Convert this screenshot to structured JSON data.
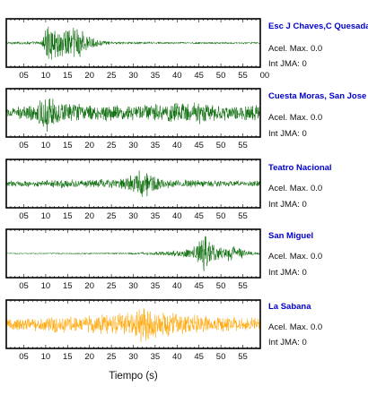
{
  "chart_data": {
    "type": "line",
    "xlabel": "Tiempo (s)",
    "xlim": [
      1,
      59
    ],
    "grid": false,
    "panels": [
      {
        "station": "Esc J Chaves,C Quesada",
        "acel_label": "Acel. Max.",
        "acel_value": "0.0",
        "jma_label": "Int JMA:",
        "jma_value": "0",
        "color": "#006600",
        "tick_labels": [
          "05",
          "10",
          "15",
          "20",
          "25",
          "30",
          "35",
          "40",
          "45",
          "50",
          "55",
          "00"
        ],
        "envelope": [
          [
            1,
            0.07
          ],
          [
            9,
            0.08
          ],
          [
            10,
            0.75
          ],
          [
            11,
            0.85
          ],
          [
            12,
            0.7
          ],
          [
            14,
            0.85
          ],
          [
            16,
            0.8
          ],
          [
            17,
            0.95
          ],
          [
            18,
            0.8
          ],
          [
            19,
            0.5
          ],
          [
            20,
            0.3
          ],
          [
            22,
            0.14
          ],
          [
            25,
            0.07
          ],
          [
            40,
            0.05
          ],
          [
            59,
            0.05
          ]
        ]
      },
      {
        "station": "Cuesta Moras, San Jose",
        "acel_label": "Acel. Max.",
        "acel_value": "0.0",
        "jma_label": "Int JMA:",
        "jma_value": "0",
        "color": "#006600",
        "tick_labels": [
          "05",
          "10",
          "15",
          "20",
          "25",
          "30",
          "35",
          "40",
          "45",
          "50",
          "55"
        ],
        "envelope": [
          [
            1,
            0.25
          ],
          [
            5,
            0.3
          ],
          [
            8,
            0.4
          ],
          [
            10,
            0.95
          ],
          [
            11,
            0.9
          ],
          [
            12,
            0.55
          ],
          [
            15,
            0.45
          ],
          [
            20,
            0.4
          ],
          [
            30,
            0.35
          ],
          [
            35,
            0.4
          ],
          [
            45,
            0.55
          ],
          [
            47,
            0.35
          ],
          [
            52,
            0.35
          ],
          [
            59,
            0.35
          ]
        ]
      },
      {
        "station": "Teatro Nacional",
        "acel_label": "Acel. Max.",
        "acel_value": "0.0",
        "jma_label": "Int JMA:",
        "jma_value": "0",
        "color": "#006600",
        "tick_labels": [
          "05",
          "10",
          "15",
          "20",
          "25",
          "30",
          "35",
          "40",
          "45",
          "50",
          "55"
        ],
        "envelope": [
          [
            1,
            0.14
          ],
          [
            10,
            0.15
          ],
          [
            13,
            0.22
          ],
          [
            20,
            0.18
          ],
          [
            27,
            0.22
          ],
          [
            30,
            0.45
          ],
          [
            32,
            0.85
          ],
          [
            34,
            0.55
          ],
          [
            36,
            0.3
          ],
          [
            40,
            0.18
          ],
          [
            45,
            0.16
          ],
          [
            59,
            0.14
          ]
        ]
      },
      {
        "station": "San Miguel",
        "acel_label": "Acel. Max.",
        "acel_value": "0.0",
        "jma_label": "Int JMA:",
        "jma_value": "0",
        "color": "#006600",
        "tick_labels": [
          "05",
          "10",
          "15",
          "20",
          "25",
          "30",
          "35",
          "40",
          "45",
          "50",
          "55"
        ],
        "envelope": [
          [
            1,
            0.03
          ],
          [
            20,
            0.04
          ],
          [
            30,
            0.05
          ],
          [
            35,
            0.08
          ],
          [
            40,
            0.15
          ],
          [
            43,
            0.25
          ],
          [
            45,
            0.55
          ],
          [
            46,
            0.95
          ],
          [
            47,
            0.7
          ],
          [
            49,
            0.3
          ],
          [
            51,
            0.3
          ],
          [
            52,
            0.45
          ],
          [
            54,
            0.3
          ],
          [
            56,
            0.12
          ],
          [
            59,
            0.07
          ]
        ]
      },
      {
        "station": "La Sabana",
        "acel_label": "Acel. Max.",
        "acel_value": "0.0",
        "jma_label": "Int JMA:",
        "jma_value": "0",
        "color": "#ffa500",
        "tick_labels": [
          "05",
          "10",
          "15",
          "20",
          "25",
          "30",
          "35",
          "40",
          "45",
          "50",
          "55"
        ],
        "envelope": [
          [
            1,
            0.3
          ],
          [
            8,
            0.32
          ],
          [
            12,
            0.45
          ],
          [
            16,
            0.35
          ],
          [
            22,
            0.45
          ],
          [
            26,
            0.5
          ],
          [
            30,
            0.6
          ],
          [
            32,
            0.95
          ],
          [
            34,
            0.75
          ],
          [
            38,
            0.55
          ],
          [
            44,
            0.45
          ],
          [
            50,
            0.35
          ],
          [
            59,
            0.3
          ]
        ]
      }
    ]
  }
}
